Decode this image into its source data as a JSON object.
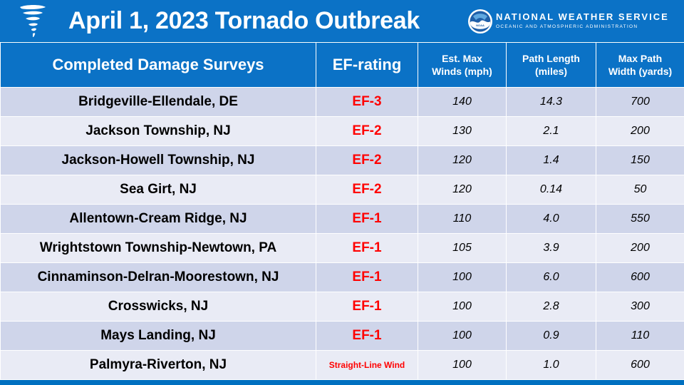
{
  "header": {
    "title": "April 1, 2023 Tornado Outbreak",
    "agency_name": "NATIONAL WEATHER SERVICE",
    "agency_subtitle": "OCEANIC AND ATMOSPHERIC ADMINISTRATION",
    "noaa_text": "NOAA",
    "icon": "tornado-icon"
  },
  "colors": {
    "header_blue": "#0b72c6",
    "row_dark": "#cfd5ea",
    "row_light": "#e9ebf5",
    "rating_red": "#ff0000"
  },
  "table": {
    "columns": [
      {
        "label": "Completed Damage Surveys"
      },
      {
        "label": "EF-rating"
      },
      {
        "line1": "Est. Max",
        "line2": "Winds (mph)"
      },
      {
        "line1": "Path Length",
        "line2": "(miles)"
      },
      {
        "line1": "Max Path",
        "line2": "Width (yards)"
      }
    ],
    "rows": [
      {
        "location": "Bridgeville-Ellendale, DE",
        "rating": "EF-3",
        "winds": "140",
        "length": "14.3",
        "width": "700"
      },
      {
        "location": "Jackson Township, NJ",
        "rating": "EF-2",
        "winds": "130",
        "length": "2.1",
        "width": "200"
      },
      {
        "location": "Jackson-Howell Township, NJ",
        "rating": "EF-2",
        "winds": "120",
        "length": "1.4",
        "width": "150"
      },
      {
        "location": "Sea Girt, NJ",
        "rating": "EF-2",
        "winds": "120",
        "length": "0.14",
        "width": "50"
      },
      {
        "location": "Allentown-Cream Ridge, NJ",
        "rating": "EF-1",
        "winds": "110",
        "length": "4.0",
        "width": "550"
      },
      {
        "location": "Wrightstown Township-Newtown, PA",
        "rating": "EF-1",
        "winds": "105",
        "length": "3.9",
        "width": "200"
      },
      {
        "location": "Cinnaminson-Delran-Moorestown, NJ",
        "rating": "EF-1",
        "winds": "100",
        "length": "6.0",
        "width": "600"
      },
      {
        "location": "Crosswicks, NJ",
        "rating": "EF-1",
        "winds": "100",
        "length": "2.8",
        "width": "300"
      },
      {
        "location": "Mays Landing, NJ",
        "rating": "EF-1",
        "winds": "100",
        "length": "0.9",
        "width": "110"
      },
      {
        "location": "Palmyra-Riverton, NJ",
        "rating": "Straight-Line Wind",
        "winds": "100",
        "length": "1.0",
        "width": "600"
      }
    ]
  }
}
